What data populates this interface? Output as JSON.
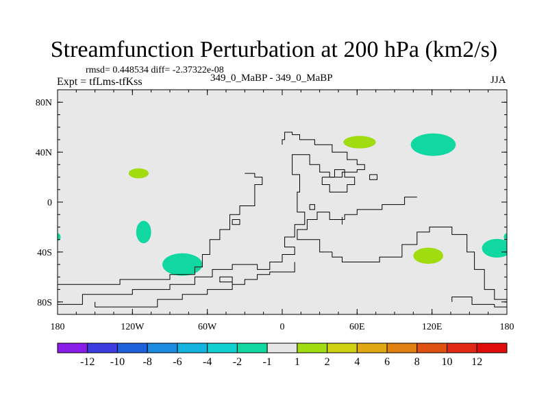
{
  "header": {
    "title": "Streamfunction Perturbation at 200 hPa (km2/s)",
    "stats": "rmsd= 0.448534 diff= -2.37322e-08",
    "expt": "Expt = tfLms-tfKss",
    "case": "349_0_MaBP - 349_0_MaBP",
    "season": "JJA"
  },
  "chart_data": {
    "type": "contour-map",
    "title": "Streamfunction Perturbation at 200 hPa (km2/s)",
    "projection": "cylindrical-equidistant",
    "xlim": [
      -180,
      180
    ],
    "ylim": [
      -90,
      90
    ],
    "grid": false,
    "background_color": "#e8e8e8",
    "coastline_color": "#000000",
    "x_ticks": [
      {
        "value": -180,
        "label": "180"
      },
      {
        "value": -120,
        "label": "120W"
      },
      {
        "value": -60,
        "label": "60W"
      },
      {
        "value": 0,
        "label": "0"
      },
      {
        "value": 60,
        "label": "60E"
      },
      {
        "value": 120,
        "label": "120E"
      },
      {
        "value": 180,
        "label": "180"
      }
    ],
    "y_ticks": [
      {
        "value": 80,
        "label": "80N"
      },
      {
        "value": 40,
        "label": "40N"
      },
      {
        "value": 0,
        "label": "0"
      },
      {
        "value": -40,
        "label": "40S"
      },
      {
        "value": -80,
        "label": "80S"
      }
    ],
    "colorbar": {
      "labels": [
        "-12",
        "-10",
        "-8",
        "-6",
        "-4",
        "-2",
        "-1",
        "1",
        "2",
        "4",
        "6",
        "8",
        "10",
        "12"
      ],
      "colors": [
        "#8a1ce8",
        "#3c3ce0",
        "#1c60dc",
        "#1c8ce0",
        "#14b4e0",
        "#10d0d0",
        "#10d8a0",
        "#e6e6e6",
        "#a0dc10",
        "#d0d010",
        "#e0a810",
        "#e08010",
        "#e05010",
        "#e02814",
        "#e00c0c"
      ]
    },
    "features": [
      {
        "name": "positive-anomaly-europe",
        "lon": 62,
        "lat": 48,
        "rlon": 13,
        "rlat": 5,
        "class": "1 to 2",
        "color": "#a0dc10"
      },
      {
        "name": "positive-anomaly-east-pacific",
        "lon": -115,
        "lat": 23,
        "rlon": 8,
        "rlat": 4,
        "class": "1 to 2",
        "color": "#a0dc10"
      },
      {
        "name": "positive-anomaly-south-indian",
        "lon": 117,
        "lat": -43,
        "rlon": 12,
        "rlat": 6.5,
        "class": "1 to 2",
        "color": "#a0dc10"
      },
      {
        "name": "negative-anomaly-north-pacific",
        "lon": 121,
        "lat": 46,
        "rlon": 18,
        "rlat": 9,
        "class": "-2 to -1",
        "color": "#10d8a0"
      },
      {
        "name": "negative-anomaly-southeast-pacific",
        "lon": -80,
        "lat": -50,
        "rlon": 16,
        "rlat": 9,
        "class": "-2 to -1",
        "color": "#10d8a0"
      },
      {
        "name": "negative-anomaly-south-pacific",
        "lon": -111,
        "lat": -24,
        "rlon": 6,
        "rlat": 9,
        "class": "-2 to -1",
        "color": "#10d8a0"
      },
      {
        "name": "negative-anomaly-southwest-pacific",
        "lon": 172,
        "lat": -37,
        "rlon": 12,
        "rlat": 7.5,
        "class": "-2 to -1",
        "color": "#10d8a0"
      },
      {
        "name": "negative-anomaly-dateline-east",
        "lon": -180,
        "lat": -28,
        "rlon": 2.5,
        "rlat": 3,
        "class": "-2 to -1",
        "color": "#10d8a0"
      },
      {
        "name": "negative-anomaly-dateline-west",
        "lon": 180,
        "lat": -28,
        "rlon": 2.5,
        "rlat": 3,
        "class": "-2 to -1",
        "color": "#10d8a0"
      }
    ],
    "coastlines": [
      {
        "name": "africa-eurasia-outline",
        "points": [
          [
            -30,
            23
          ],
          [
            -22,
            23
          ],
          [
            -22,
            20
          ],
          [
            -16,
            20
          ],
          [
            -16,
            14
          ],
          [
            -22,
            14
          ],
          [
            -22,
            -3
          ],
          [
            -34,
            -3
          ],
          [
            -34,
            -10
          ],
          [
            -42,
            -10
          ],
          [
            -42,
            -22
          ],
          [
            -50,
            -22
          ],
          [
            -50,
            -30
          ],
          [
            -58,
            -30
          ],
          [
            -58,
            -42
          ],
          [
            -64,
            -42
          ],
          [
            -64,
            -52
          ],
          [
            -70,
            -52
          ],
          [
            -70,
            -58
          ],
          [
            -90,
            -58
          ],
          [
            -90,
            -62
          ],
          [
            -130,
            -62
          ],
          [
            -130,
            -66
          ],
          [
            -180,
            -66
          ]
        ]
      },
      {
        "name": "gondwana-south-margin",
        "points": [
          [
            -180,
            -82
          ],
          [
            -160,
            -82
          ],
          [
            -160,
            -74
          ],
          [
            -120,
            -74
          ],
          [
            -120,
            -70
          ],
          [
            -90,
            -70
          ],
          [
            -90,
            -66
          ],
          [
            -70,
            -66
          ],
          [
            -70,
            -60
          ],
          [
            -56,
            -60
          ],
          [
            -56,
            -54
          ],
          [
            -40,
            -54
          ],
          [
            -40,
            -50
          ],
          [
            -20,
            -50
          ],
          [
            -20,
            -54
          ],
          [
            -10,
            -54
          ],
          [
            -10,
            -48
          ],
          [
            0,
            -48
          ],
          [
            0,
            -42
          ],
          [
            10,
            -42
          ],
          [
            10,
            -36
          ],
          [
            2,
            -36
          ],
          [
            2,
            -28
          ],
          [
            10,
            -28
          ],
          [
            10,
            -18
          ],
          [
            18,
            -18
          ],
          [
            18,
            -8
          ],
          [
            12,
            -8
          ],
          [
            12,
            8
          ],
          [
            14,
            8
          ],
          [
            14,
            22
          ],
          [
            8,
            22
          ],
          [
            8,
            38
          ],
          [
            22,
            38
          ],
          [
            22,
            30
          ],
          [
            30,
            30
          ],
          [
            30,
            24
          ],
          [
            38,
            24
          ],
          [
            38,
            20
          ],
          [
            48,
            20
          ],
          [
            48,
            24
          ],
          [
            60,
            24
          ],
          [
            60,
            26
          ],
          [
            66,
            26
          ],
          [
            66,
            30
          ],
          [
            60,
            30
          ],
          [
            60,
            34
          ],
          [
            52,
            34
          ],
          [
            52,
            40
          ],
          [
            40,
            40
          ],
          [
            40,
            46
          ],
          [
            26,
            46
          ],
          [
            26,
            50
          ],
          [
            14,
            50
          ],
          [
            14,
            54
          ],
          [
            8,
            54
          ],
          [
            8,
            56
          ],
          [
            2,
            56
          ],
          [
            2,
            50
          ],
          [
            0,
            50
          ],
          [
            0,
            46
          ]
        ]
      },
      {
        "name": "panthalassa-inner-coast",
        "points": [
          [
            -150,
            -80
          ],
          [
            -150,
            -84
          ],
          [
            -100,
            -84
          ],
          [
            -100,
            -78
          ],
          [
            -80,
            -78
          ],
          [
            -80,
            -74
          ],
          [
            -60,
            -74
          ],
          [
            -60,
            -70
          ],
          [
            -40,
            -70
          ],
          [
            -40,
            -64
          ],
          [
            -50,
            -64
          ],
          [
            -50,
            -60
          ],
          [
            -40,
            -60
          ],
          [
            -40,
            -66
          ],
          [
            -30,
            -66
          ],
          [
            -30,
            -62
          ],
          [
            -20,
            -62
          ],
          [
            -20,
            -58
          ],
          [
            -10,
            -58
          ],
          [
            -10,
            -56
          ],
          [
            10,
            -56
          ],
          [
            10,
            -48
          ]
        ]
      },
      {
        "name": "tethys-north-shore",
        "points": [
          [
            -40,
            -14
          ],
          [
            -40,
            -18
          ],
          [
            -34,
            -18
          ],
          [
            -34,
            -14
          ],
          [
            -40,
            -14
          ]
        ]
      },
      {
        "name": "siberia-cratonic-margin",
        "points": [
          [
            40,
            -40
          ],
          [
            40,
            -44
          ],
          [
            48,
            -44
          ],
          [
            48,
            -48
          ],
          [
            78,
            -48
          ],
          [
            78,
            -44
          ],
          [
            96,
            -44
          ],
          [
            96,
            -34
          ],
          [
            108,
            -34
          ],
          [
            108,
            -24
          ],
          [
            118,
            -24
          ],
          [
            118,
            -20
          ],
          [
            136,
            -20
          ],
          [
            136,
            -26
          ],
          [
            148,
            -26
          ],
          [
            148,
            -40
          ],
          [
            154,
            -40
          ],
          [
            154,
            -54
          ],
          [
            162,
            -54
          ],
          [
            162,
            -70
          ],
          [
            170,
            -70
          ],
          [
            170,
            -78
          ],
          [
            180,
            -78
          ]
        ]
      },
      {
        "name": "east-asia-blocks",
        "points": [
          [
            40,
            -40
          ],
          [
            30,
            -40
          ],
          [
            30,
            -30
          ],
          [
            12,
            -30
          ],
          [
            12,
            -22
          ],
          [
            20,
            -22
          ],
          [
            20,
            -14
          ],
          [
            28,
            -14
          ],
          [
            28,
            -8
          ],
          [
            38,
            -8
          ],
          [
            38,
            -14
          ],
          [
            50,
            -14
          ],
          [
            50,
            -10
          ],
          [
            60,
            -10
          ],
          [
            60,
            -6
          ],
          [
            80,
            -6
          ],
          [
            80,
            -2
          ],
          [
            98,
            -2
          ],
          [
            98,
            4
          ],
          [
            108,
            4
          ]
        ]
      },
      {
        "name": "north-china-inlet",
        "points": [
          [
            48,
            -18
          ],
          [
            48,
            -12
          ]
        ]
      },
      {
        "name": "qiangtang-fragment",
        "points": [
          [
            32,
            20
          ],
          [
            32,
            14
          ],
          [
            38,
            14
          ],
          [
            38,
            8
          ],
          [
            52,
            8
          ],
          [
            52,
            14
          ],
          [
            58,
            14
          ],
          [
            58,
            20
          ],
          [
            50,
            20
          ],
          [
            50,
            26
          ],
          [
            42,
            26
          ],
          [
            42,
            20
          ],
          [
            32,
            20
          ]
        ]
      },
      {
        "name": "tarim-fragment",
        "points": [
          [
            70,
            22
          ],
          [
            70,
            18
          ],
          [
            76,
            18
          ],
          [
            76,
            22
          ],
          [
            70,
            22
          ]
        ]
      },
      {
        "name": "south-china-fragment",
        "points": [
          [
            136,
            -80
          ],
          [
            136,
            -76
          ],
          [
            152,
            -76
          ],
          [
            152,
            -82
          ],
          [
            170,
            -82
          ],
          [
            170,
            -84
          ],
          [
            180,
            -84
          ]
        ]
      },
      {
        "name": "west-tethys-islet",
        "points": [
          [
            22,
            -2
          ],
          [
            22,
            -6
          ],
          [
            26,
            -6
          ],
          [
            26,
            -2
          ],
          [
            22,
            -2
          ]
        ]
      },
      {
        "name": "east-tethys-islet",
        "points": [
          [
            140,
            -76
          ],
          [
            152,
            -76
          ],
          [
            152,
            -80
          ]
        ]
      }
    ]
  }
}
